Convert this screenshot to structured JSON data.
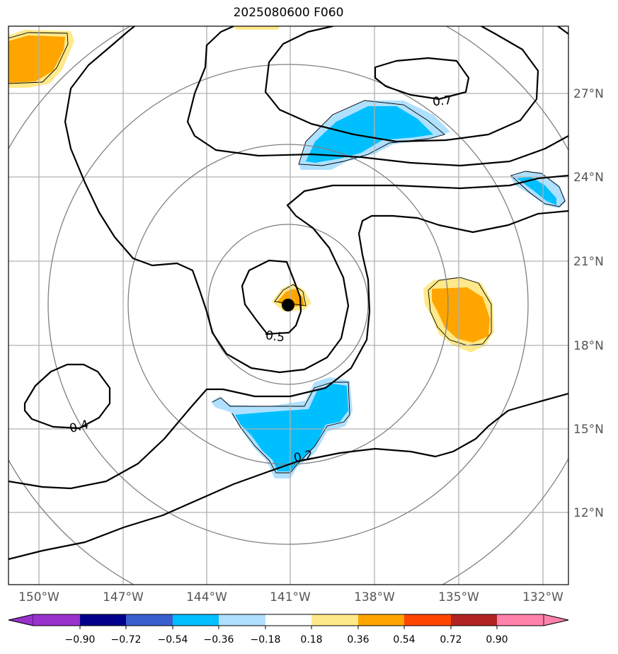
{
  "title": "2025080600 F060",
  "map": {
    "lon_labels": [
      "150°W",
      "147°W",
      "144°W",
      "141°W",
      "138°W",
      "135°W",
      "132°W"
    ],
    "lat_labels": [
      "27°N",
      "24°N",
      "21°N",
      "18°N",
      "15°N",
      "12°N"
    ],
    "center_marker": "storm-center",
    "contour_labels": [
      "0.7",
      "0.5",
      "0.4",
      "0.2"
    ],
    "colors": {
      "light_blue": "#b0e0ff",
      "blue": "#00bfff",
      "light_yellow": "#ffe98a",
      "orange": "#ffa500",
      "contour": "#000000",
      "ring": "#808080",
      "grid": "#b0b0b0"
    }
  },
  "colorbar": {
    "tick_labels": [
      "−0.90",
      "−0.72",
      "−0.54",
      "−0.36",
      "−0.18",
      "0.18",
      "0.36",
      "0.54",
      "0.72",
      "0.90"
    ],
    "colors": [
      "#9932cc",
      "#00008b",
      "#3a5fcd",
      "#00bfff",
      "#b0e0ff",
      "#ffffff",
      "#ffe98a",
      "#ffa500",
      "#ff4500",
      "#b22222",
      "#ff82ab"
    ]
  }
}
